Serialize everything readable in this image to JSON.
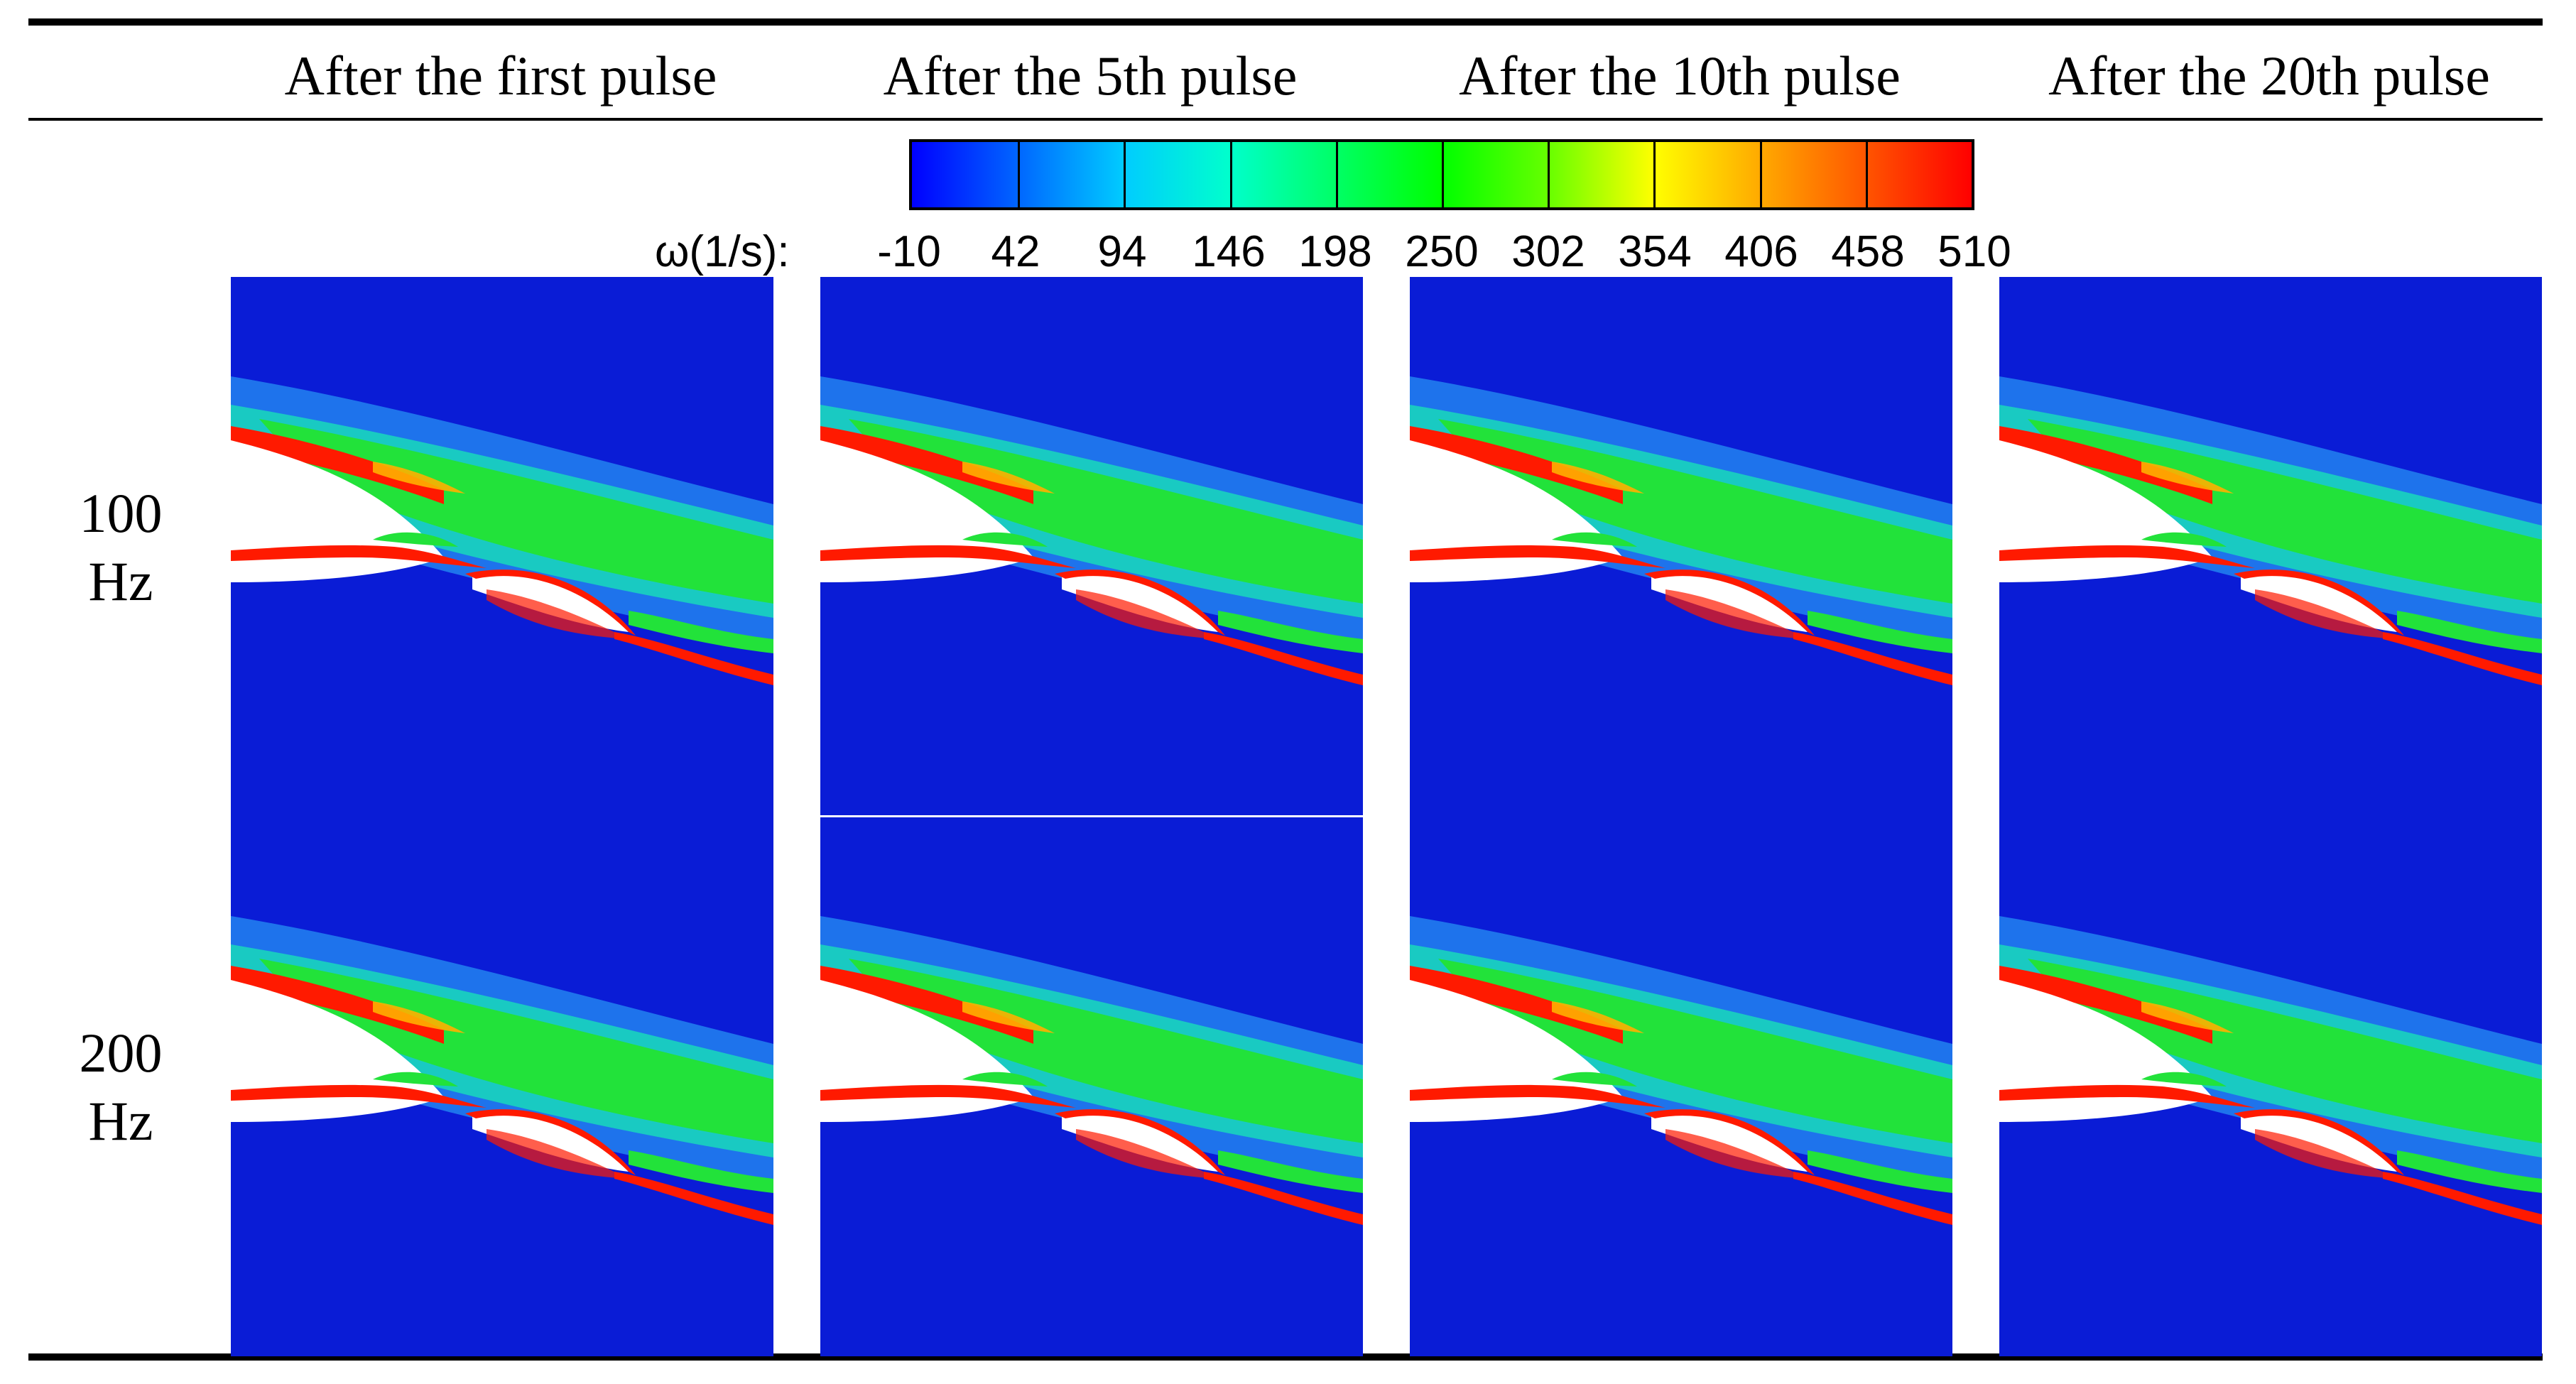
{
  "columns": [
    "After the first pulse",
    "After the 5th pulse",
    "After the 10th pulse",
    "After the 20th pulse"
  ],
  "rows": [
    {
      "label_line1": "100",
      "label_line2": "Hz"
    },
    {
      "label_line1": "200",
      "label_line2": "Hz"
    }
  ],
  "colorbar": {
    "title": "ω(1/s):",
    "ticks": [
      "-10",
      "42",
      "94",
      "146",
      "198",
      "250",
      "302",
      "354",
      "406",
      "458",
      "510"
    ],
    "min": -10,
    "max": 510,
    "colors": [
      "#0000ff",
      "#0066ff",
      "#00ccff",
      "#00ffcc",
      "#00ff66",
      "#00ff00",
      "#66ff00",
      "#ffff00",
      "#ffaa00",
      "#ff5500",
      "#ff0000"
    ]
  }
}
